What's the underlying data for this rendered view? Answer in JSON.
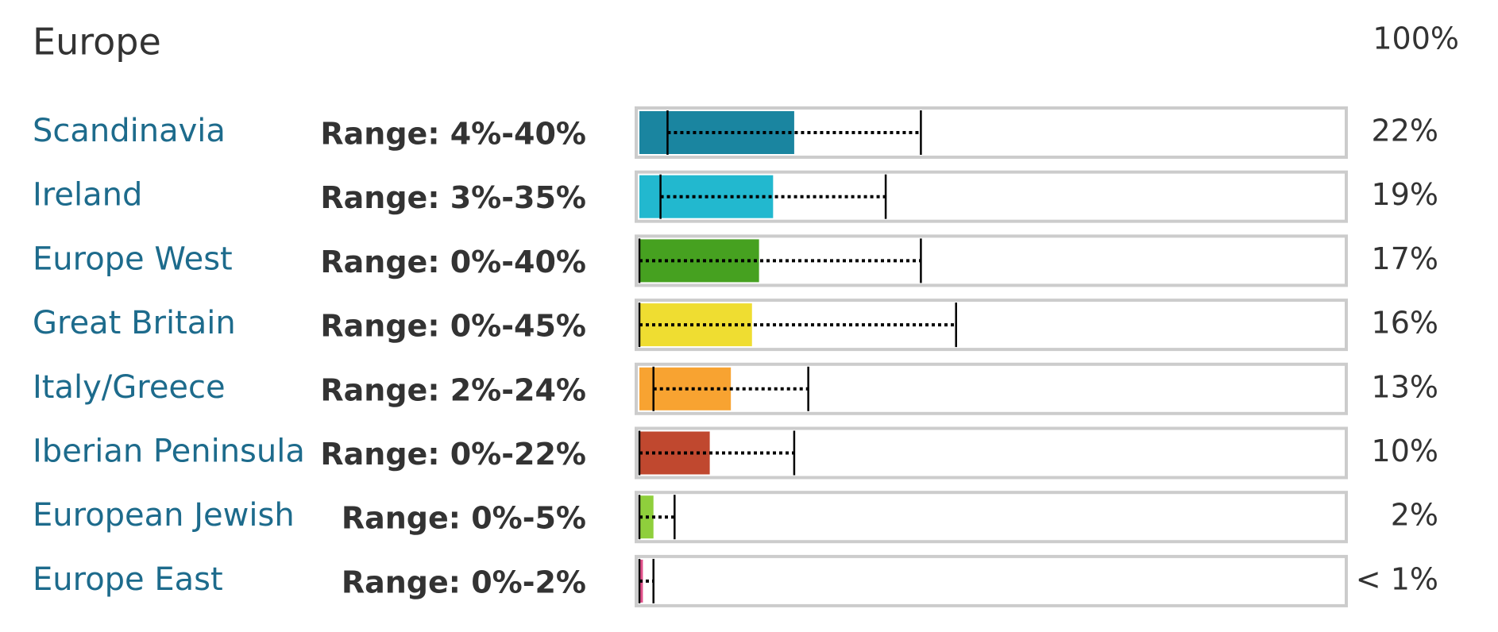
{
  "chart_data": {
    "type": "bar",
    "orientation": "horizontal",
    "title": "Europe",
    "categories": [
      "Scandinavia",
      "Ireland",
      "Europe West",
      "Great Britain",
      "Italy/Greece",
      "Iberian Peninsula",
      "European Jewish",
      "Europe East"
    ],
    "values": [
      22,
      19,
      17,
      16,
      13,
      10,
      2,
      0.5
    ],
    "value_labels": [
      "22%",
      "19%",
      "17%",
      "16%",
      "13%",
      "10%",
      "2%",
      "< 1%"
    ],
    "ranges": [
      [
        4,
        40
      ],
      [
        3,
        35
      ],
      [
        0,
        40
      ],
      [
        0,
        45
      ],
      [
        2,
        24
      ],
      [
        0,
        22
      ],
      [
        0,
        5
      ],
      [
        0,
        2
      ]
    ],
    "range_labels": [
      "Range: 4%-40%",
      "Range: 3%-35%",
      "Range: 0%-40%",
      "Range: 0%-45%",
      "Range: 2%-24%",
      "Range: 0%-22%",
      "Range: 0%-5%",
      "Range: 0%-2%"
    ],
    "colors": [
      "#1a85a0",
      "#22b8cf",
      "#46a120",
      "#efdd31",
      "#f8a331",
      "#c0482f",
      "#8fcf3c",
      "#e0508a"
    ],
    "xlim": [
      0,
      100
    ],
    "xticks": [
      {
        "value": 100,
        "label": "100%"
      }
    ]
  }
}
